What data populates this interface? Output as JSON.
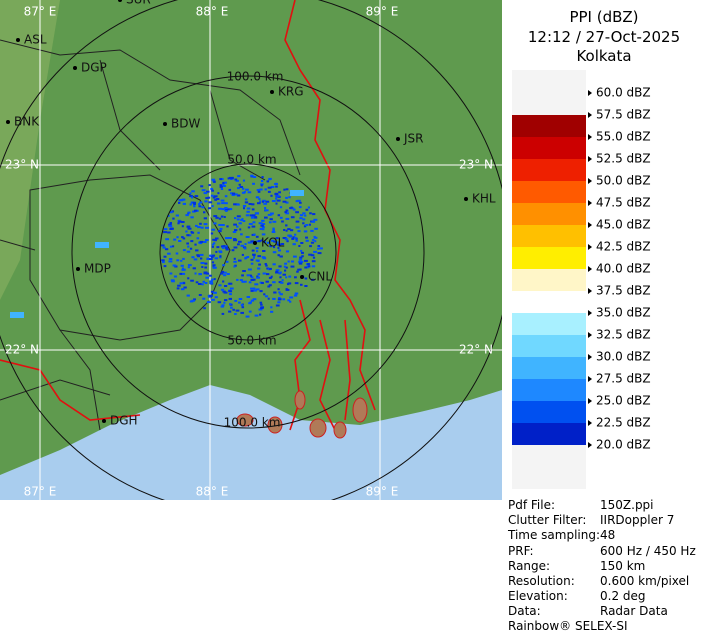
{
  "header": {
    "title": "PPI (dBZ)",
    "time": "12:12 / 27-Oct-2025",
    "station": "Kolkata"
  },
  "map": {
    "grid_labels": [
      "87° E",
      "88° E",
      "89° E",
      "23° N",
      "23° N",
      "22° N",
      "22° N",
      "87° E",
      "88° E",
      "89° E"
    ],
    "range_labels": [
      "100.0 km",
      "50.0 km",
      "50.0 km",
      "100.0 km"
    ],
    "places": [
      "SUR",
      "ASL",
      "DGP",
      "BNK",
      "BDW",
      "KRG",
      "JSR",
      "KHL",
      "MDP",
      "KOL",
      "CNL",
      "DGH"
    ]
  },
  "legend": {
    "labels": [
      "60.0 dBZ",
      "57.5 dBZ",
      "55.0 dBZ",
      "52.5 dBZ",
      "50.0 dBZ",
      "47.5 dBZ",
      "45.0 dBZ",
      "42.5 dBZ",
      "40.0 dBZ",
      "37.5 dBZ",
      "35.0 dBZ",
      "32.5 dBZ",
      "30.0 dBZ",
      "27.5 dBZ",
      "25.0 dBZ",
      "22.5 dBZ",
      "20.0 dBZ"
    ],
    "colors": [
      "#f4f4f4",
      "#a00000",
      "#cc0000",
      "#ee2000",
      "#ff5a00",
      "#ff9000",
      "#ffc000",
      "#ffee00",
      "#fff6c8",
      "#ffffff",
      "#a8f0ff",
      "#70d8ff",
      "#40b4ff",
      "#1e88ff",
      "#0050f0",
      "#0020c8",
      "#000090"
    ]
  },
  "info": {
    "rows": [
      [
        "Pdf File:",
        "150Z.ppi"
      ],
      [
        "Clutter Filter:",
        "IIRDoppler 7"
      ],
      [
        "Time sampling:",
        "48"
      ],
      [
        "PRF:",
        "600 Hz / 450 Hz"
      ],
      [
        "Range:",
        "150 km"
      ],
      [
        "Resolution:",
        "0.600 km/pixel"
      ],
      [
        "Elevation:",
        "0.2 deg"
      ],
      [
        "Data:",
        "Radar Data"
      ]
    ],
    "footer": "Rainbow® SELEX-SI"
  }
}
